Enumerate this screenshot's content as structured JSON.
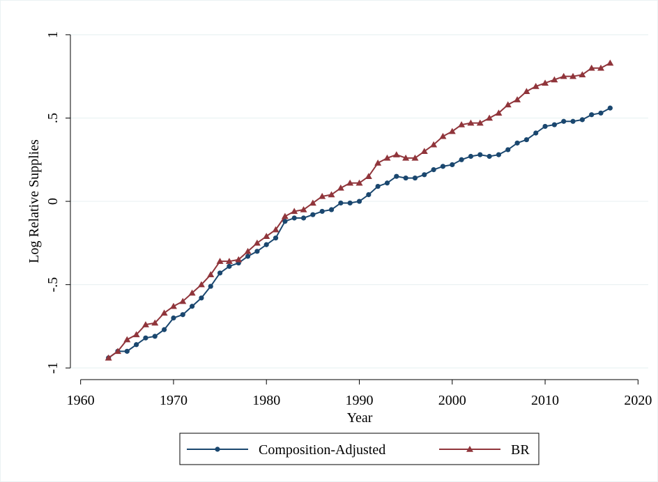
{
  "chart_data": {
    "type": "line",
    "xlabel": "Year",
    "ylabel": "Log Relative Supplies",
    "x": [
      1963,
      1964,
      1965,
      1966,
      1967,
      1968,
      1969,
      1970,
      1971,
      1972,
      1973,
      1974,
      1975,
      1976,
      1977,
      1978,
      1979,
      1980,
      1981,
      1982,
      1983,
      1984,
      1985,
      1986,
      1987,
      1988,
      1989,
      1990,
      1991,
      1992,
      1993,
      1994,
      1995,
      1996,
      1997,
      1998,
      1999,
      2000,
      2001,
      2002,
      2003,
      2004,
      2005,
      2006,
      2007,
      2008,
      2009,
      2010,
      2011,
      2012,
      2013,
      2014,
      2015,
      2016,
      2017
    ],
    "series": [
      {
        "name": "Composition-Adjusted",
        "color": "#1a476f",
        "marker": "circle",
        "values": [
          -0.94,
          -0.9,
          -0.9,
          -0.86,
          -0.82,
          -0.81,
          -0.77,
          -0.7,
          -0.68,
          -0.63,
          -0.58,
          -0.51,
          -0.43,
          -0.39,
          -0.37,
          -0.33,
          -0.3,
          -0.26,
          -0.22,
          -0.12,
          -0.1,
          -0.1,
          -0.08,
          -0.06,
          -0.05,
          -0.01,
          -0.01,
          0.0,
          0.04,
          0.09,
          0.11,
          0.15,
          0.14,
          0.14,
          0.16,
          0.19,
          0.21,
          0.22,
          0.25,
          0.27,
          0.28,
          0.27,
          0.28,
          0.31,
          0.35,
          0.37,
          0.41,
          0.45,
          0.46,
          0.48,
          0.48,
          0.49,
          0.52,
          0.53,
          0.56
        ]
      },
      {
        "name": "BR",
        "color": "#90353b",
        "marker": "triangle",
        "values": [
          -0.94,
          -0.9,
          -0.83,
          -0.8,
          -0.74,
          -0.73,
          -0.67,
          -0.63,
          -0.6,
          -0.55,
          -0.5,
          -0.44,
          -0.36,
          -0.36,
          -0.35,
          -0.3,
          -0.25,
          -0.21,
          -0.17,
          -0.09,
          -0.06,
          -0.05,
          -0.01,
          0.03,
          0.04,
          0.08,
          0.11,
          0.11,
          0.15,
          0.23,
          0.26,
          0.28,
          0.26,
          0.26,
          0.3,
          0.34,
          0.39,
          0.42,
          0.46,
          0.47,
          0.47,
          0.5,
          0.53,
          0.58,
          0.61,
          0.66,
          0.69,
          0.71,
          0.73,
          0.75,
          0.75,
          0.76,
          0.8,
          0.8,
          0.83
        ]
      }
    ],
    "xlim": [
      1958.9,
      2021.1
    ],
    "ylim": [
      -1.07,
      1.15
    ],
    "xticks": [
      1960,
      1970,
      1980,
      1990,
      2000,
      2010,
      2020
    ],
    "yticks": [
      -1,
      {
        "value": -0.5,
        "label": "-.5"
      },
      0,
      {
        "value": 0.5,
        "label": ".5"
      },
      1
    ],
    "grid": true
  }
}
